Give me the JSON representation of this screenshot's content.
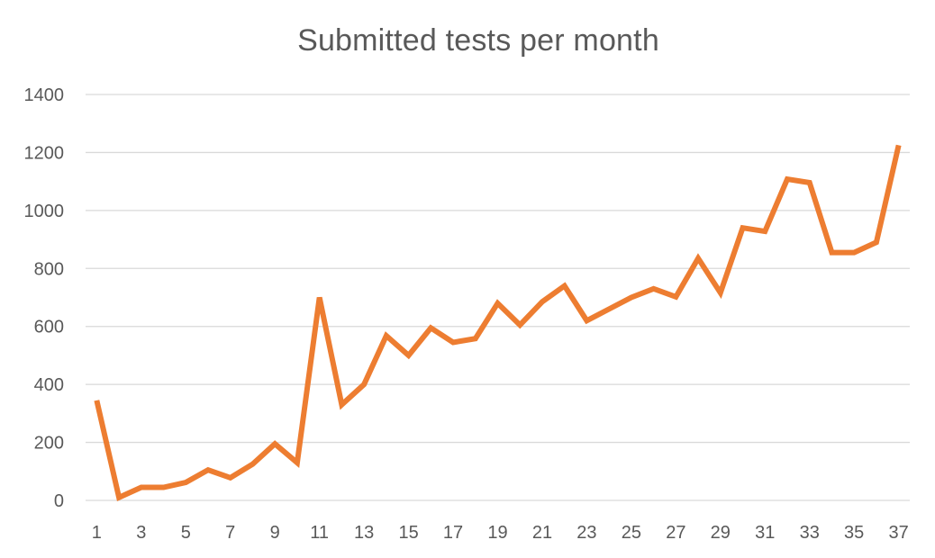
{
  "chart_data": {
    "type": "line",
    "title": "Submitted tests per month",
    "xlabel": "",
    "ylabel": "",
    "ylim": [
      0,
      1400
    ],
    "yticks": [
      0,
      200,
      400,
      600,
      800,
      1000,
      1200,
      1400
    ],
    "x": [
      1,
      2,
      3,
      4,
      5,
      6,
      7,
      8,
      9,
      10,
      11,
      12,
      13,
      14,
      15,
      16,
      17,
      18,
      19,
      20,
      21,
      22,
      23,
      24,
      25,
      26,
      27,
      28,
      29,
      30,
      31,
      32,
      33,
      34,
      35,
      36,
      37
    ],
    "xtick_labels": [
      1,
      3,
      5,
      7,
      9,
      11,
      13,
      15,
      17,
      19,
      21,
      23,
      25,
      27,
      29,
      31,
      33,
      35,
      37
    ],
    "series": [
      {
        "values": [
          345,
          10,
          45,
          45,
          62,
          105,
          78,
          125,
          195,
          130,
          700,
          330,
          400,
          568,
          500,
          595,
          545,
          558,
          680,
          605,
          685,
          740,
          620,
          660,
          700,
          730,
          702,
          835,
          716,
          940,
          928,
          1108,
          1096,
          855,
          855,
          890,
          1225
        ],
        "color": "#ED7D31"
      }
    ],
    "grid": true,
    "legend": "none"
  }
}
